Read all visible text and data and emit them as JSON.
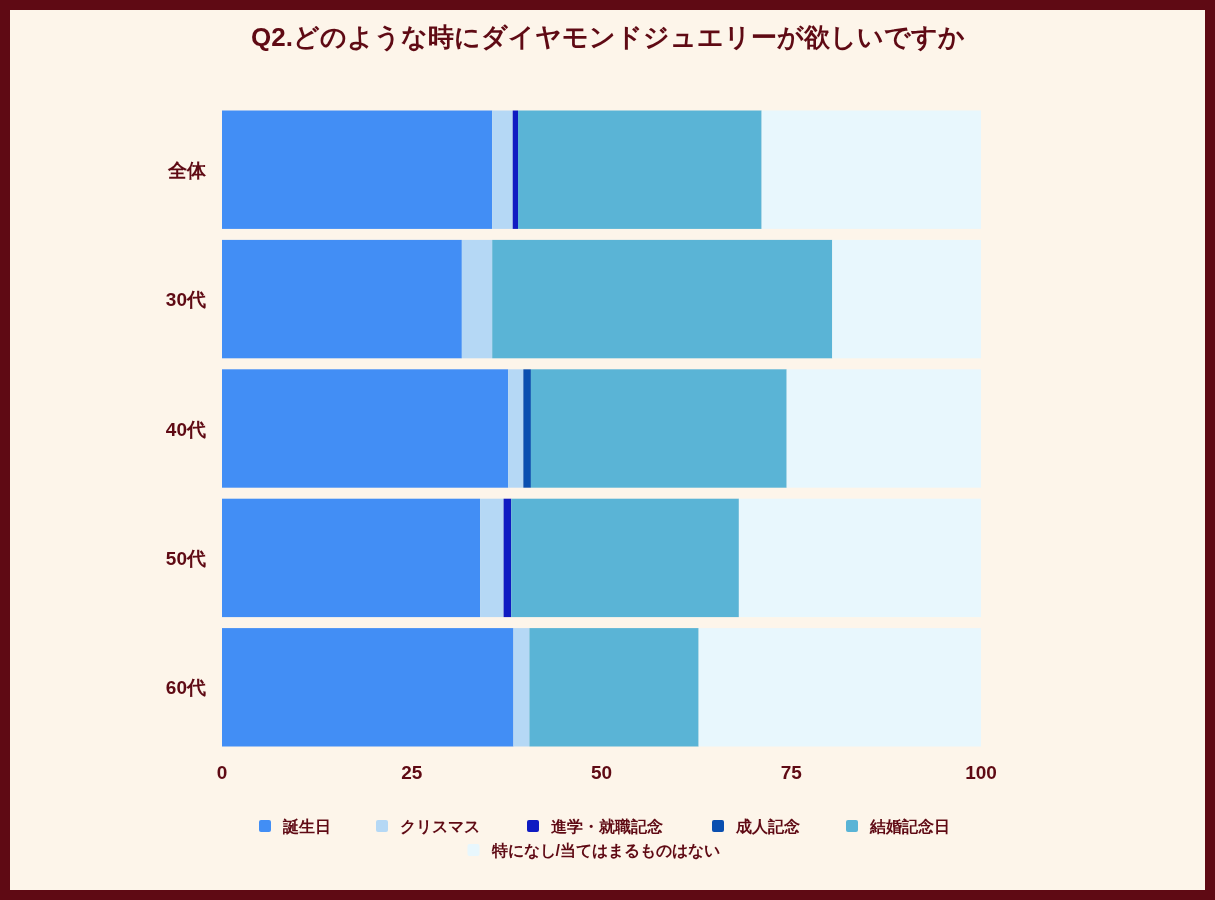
{
  "chart_data": {
    "type": "bar",
    "orientation": "horizontal",
    "stacked": true,
    "title": "Q2.どのような時にダイヤモンドジュエリーが欲しいですか",
    "categories": [
      "全体",
      "30代",
      "40代",
      "50代",
      "60代"
    ],
    "series": [
      {
        "name": "誕生日",
        "color": "#428ef5",
        "values": [
          35.6,
          31.6,
          37.7,
          34.0,
          38.4
        ]
      },
      {
        "name": "クリスマス",
        "color": "#b5d8f5",
        "values": [
          2.7,
          4.0,
          2.0,
          3.1,
          2.1
        ]
      },
      {
        "name": "進学・就職記念",
        "color": "#0f1bc2",
        "values": [
          0.7,
          0,
          0,
          1.0,
          0
        ]
      },
      {
        "name": "成人記念",
        "color": "#0a4fb0",
        "values": [
          0,
          0,
          1.0,
          0,
          0
        ]
      },
      {
        "name": "結婚記念日",
        "color": "#5ab4d6",
        "values": [
          32.1,
          44.8,
          33.7,
          30.0,
          22.3
        ]
      },
      {
        "name": "特になし/当てはまるものはない",
        "color": "#e8f7fd",
        "values": [
          28.9,
          19.6,
          25.6,
          31.9,
          37.2
        ]
      }
    ],
    "xlim": [
      0,
      100
    ],
    "xticks": [
      0,
      25,
      50,
      75,
      100
    ],
    "grid": false,
    "legend": "bottom"
  }
}
